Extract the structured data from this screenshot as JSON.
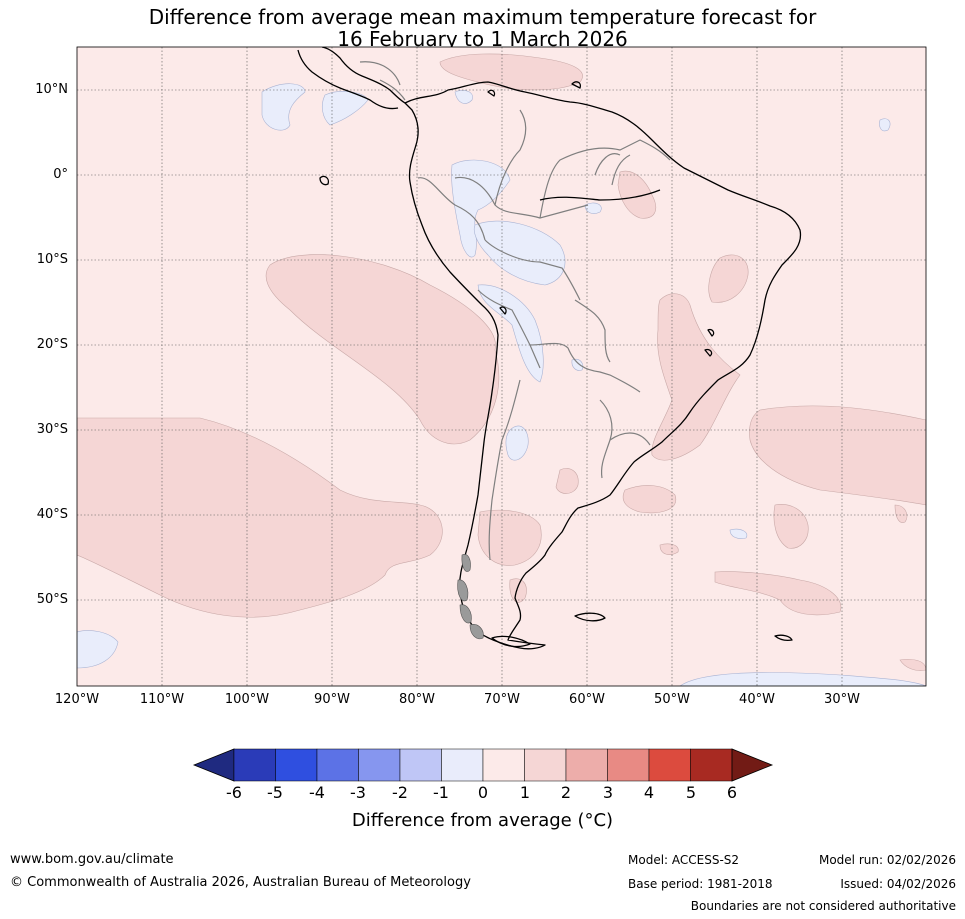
{
  "title": {
    "line1": "Difference from average mean maximum temperature forecast for",
    "line2": "16 February to 1 March 2026"
  },
  "map": {
    "lat_labels": [
      "10°N",
      "0°",
      "10°S",
      "20°S",
      "30°S",
      "40°S",
      "50°S"
    ],
    "lon_labels": [
      "120°W",
      "110°W",
      "100°W",
      "90°W",
      "80°W",
      "70°W",
      "60°W",
      "50°W",
      "40°W",
      "30°W"
    ],
    "colors": {
      "background_0_1": "#fceae9",
      "neg_1_0": "#e9edfb",
      "pos_1_2": "#f5d6d5",
      "coast": "#000000",
      "borders": "#7f7f7f"
    }
  },
  "colorbar": {
    "ticks": [
      "-6",
      "-5",
      "-4",
      "-3",
      "-2",
      "-1",
      "0",
      "1",
      "2",
      "3",
      "4",
      "5",
      "6"
    ],
    "colors": [
      "#1f2a80",
      "#2a3bb8",
      "#2f4fe0",
      "#5c72e6",
      "#8696ef",
      "#bfc6f6",
      "#e9ecfb",
      "#fceae9",
      "#f5d6d5",
      "#edadaa",
      "#e88a84",
      "#dc4b3e",
      "#a82a22",
      "#721b15"
    ],
    "label": "Difference from average (°C)"
  },
  "footer": {
    "website": "www.bom.gov.au/climate",
    "copyright": "© Commonwealth of Australia 2026, Australian Bureau of Meteorology",
    "model": "Model: ACCESS-S2",
    "base_period": "Base period: 1981-2018",
    "model_run": "Model run: 02/02/2026",
    "issued": "Issued: 04/02/2026",
    "disclaimer": "Boundaries are not considered authoritative"
  }
}
